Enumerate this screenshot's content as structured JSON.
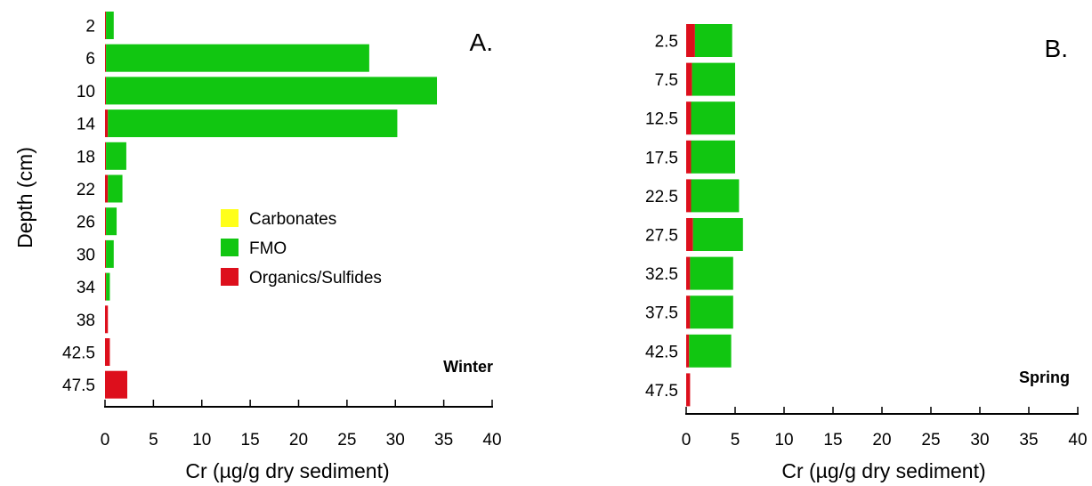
{
  "legend": {
    "items": [
      {
        "label": "Carbonates",
        "color": "#ffff1a"
      },
      {
        "label": "FMO",
        "color": "#11c611"
      },
      {
        "label": "Organics/Sulfides",
        "color": "#dd0f1c"
      }
    ]
  },
  "chart_data": [
    {
      "type": "bar",
      "orientation": "horizontal",
      "stacked": true,
      "panel_label": "A.",
      "season": "Winter",
      "ylabel": "Depth (cm)",
      "xlabel": "Cr (µg/g dry sediment)",
      "xlim": [
        0,
        40
      ],
      "xticks": [
        0,
        5,
        10,
        15,
        20,
        25,
        30,
        35,
        40
      ],
      "categories": [
        "2",
        "6",
        "10",
        "14",
        "18",
        "22",
        "26",
        "30",
        "34",
        "38",
        "42.5",
        "47.5"
      ],
      "series": [
        {
          "name": "Carbonates",
          "color": "#ffff1a",
          "values": [
            0,
            0,
            0,
            0,
            0,
            0,
            0,
            0,
            0,
            0,
            0,
            0
          ]
        },
        {
          "name": "Organics/Sulfides",
          "color": "#dd0f1c",
          "values": [
            0.1,
            0.1,
            0.1,
            0.3,
            0.1,
            0.3,
            0.1,
            0.1,
            0.1,
            0.3,
            0.5,
            2.3
          ]
        },
        {
          "name": "FMO",
          "color": "#11c611",
          "values": [
            0.8,
            27.2,
            34.2,
            29.9,
            2.1,
            1.5,
            1.1,
            0.8,
            0.4,
            0,
            0,
            0
          ]
        }
      ]
    },
    {
      "type": "bar",
      "orientation": "horizontal",
      "stacked": true,
      "panel_label": "B.",
      "season": "Spring",
      "ylabel": "",
      "xlabel": "Cr (µg/g dry sediment)",
      "xlim": [
        0,
        40
      ],
      "xticks": [
        0,
        5,
        10,
        15,
        20,
        25,
        30,
        35,
        40
      ],
      "categories": [
        "2.5",
        "7.5",
        "12.5",
        "17.5",
        "22.5",
        "27.5",
        "32.5",
        "37.5",
        "42.5",
        "47.5"
      ],
      "series": [
        {
          "name": "Carbonates",
          "color": "#ffff1a",
          "values": [
            0,
            0,
            0,
            0,
            0,
            0,
            0,
            0,
            0,
            0
          ]
        },
        {
          "name": "Organics/Sulfides",
          "color": "#dd0f1c",
          "values": [
            0.9,
            0.6,
            0.5,
            0.5,
            0.5,
            0.7,
            0.4,
            0.4,
            0.3,
            0.4
          ]
        },
        {
          "name": "FMO",
          "color": "#11c611",
          "values": [
            3.8,
            4.4,
            4.5,
            4.5,
            4.9,
            5.1,
            4.4,
            4.4,
            4.3,
            0
          ]
        }
      ]
    }
  ]
}
